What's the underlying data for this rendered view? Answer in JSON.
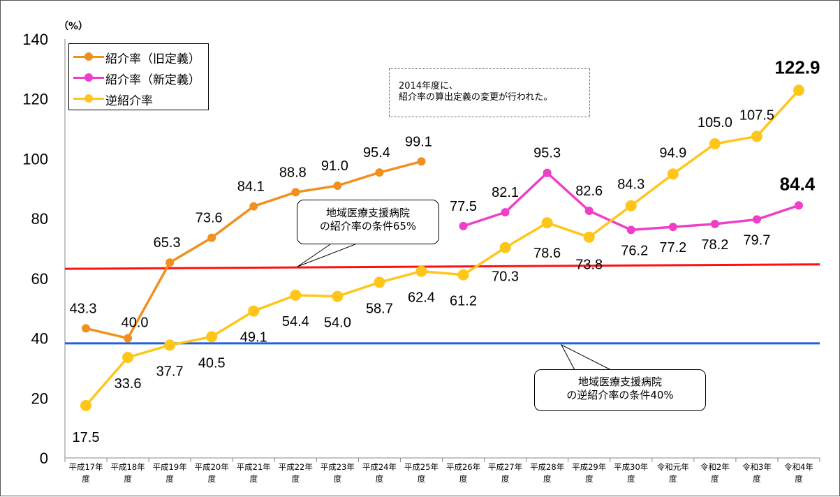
{
  "chart_data": {
    "type": "line",
    "unit_label": "（%）",
    "ylim": [
      0,
      140
    ],
    "yticks": [
      0,
      20,
      40,
      60,
      80,
      100,
      120,
      140
    ],
    "categories": [
      [
        "平成17年",
        "度"
      ],
      [
        "平成18年",
        "度"
      ],
      [
        "平成19年",
        "度"
      ],
      [
        "平成20年",
        "度"
      ],
      [
        "平成21年",
        "度"
      ],
      [
        "平成22年",
        "度"
      ],
      [
        "平成23年",
        "度"
      ],
      [
        "平成24年",
        "度"
      ],
      [
        "平成25年",
        "度"
      ],
      [
        "平成26年",
        "度"
      ],
      [
        "平成27年",
        "度"
      ],
      [
        "平成28年",
        "度"
      ],
      [
        "平成29年",
        "度"
      ],
      [
        "平成30年",
        "度"
      ],
      [
        "令和元年",
        "度"
      ],
      [
        "令和2年",
        "度"
      ],
      [
        "令和3年",
        "度"
      ],
      [
        "令和4年",
        "度"
      ]
    ],
    "series": [
      {
        "name": "紹介率（旧定義）",
        "color": "#f0901e",
        "values": [
          43.3,
          40.0,
          65.3,
          73.6,
          84.1,
          88.8,
          91.0,
          95.4,
          99.1,
          null,
          null,
          null,
          null,
          null,
          null,
          null,
          null,
          null
        ],
        "labels": [
          "43.3",
          "40.0",
          "65.3",
          "73.6",
          "84.1",
          "88.8",
          "91.0",
          "95.4",
          "99.1",
          null,
          null,
          null,
          null,
          null,
          null,
          null,
          null,
          null
        ]
      },
      {
        "name": "紹介率（新定義）",
        "color": "#ee3fc8",
        "values": [
          null,
          null,
          null,
          null,
          null,
          null,
          null,
          null,
          null,
          77.5,
          82.1,
          95.3,
          82.6,
          76.2,
          77.2,
          78.2,
          79.7,
          84.4
        ],
        "labels": [
          null,
          null,
          null,
          null,
          null,
          null,
          null,
          null,
          null,
          "77.5",
          "82.1",
          "95.3",
          "82.6",
          "76.2",
          "77.2",
          "78.2",
          "79.7",
          "84.4"
        ]
      },
      {
        "name": "逆紹介率",
        "color": "#ffc61a",
        "values": [
          17.5,
          33.6,
          37.7,
          40.5,
          49.1,
          54.4,
          54.0,
          58.7,
          62.4,
          61.2,
          70.3,
          78.6,
          73.8,
          84.3,
          94.9,
          105.0,
          107.5,
          122.9
        ],
        "labels": [
          "17.5",
          "33.6",
          "37.7",
          "40.5",
          "49.1",
          "54.4",
          "54.0",
          "58.7",
          "62.4",
          "61.2",
          "70.3",
          "78.6",
          "73.8",
          "84.3",
          "94.9",
          "105.0",
          "107.5",
          "122.9"
        ]
      }
    ],
    "reference_lines": [
      {
        "name": "紹介率の条件65%",
        "color": "#ff1010",
        "y_start": 63.2,
        "y_end": 64.7
      },
      {
        "name": "逆紹介率の条件40%",
        "color": "#2060e0",
        "y_start": 38.3,
        "y_end": 38.3
      }
    ],
    "legend_position": "top-left"
  },
  "note": {
    "line1": "2014年度に、",
    "line2": "紹介率の算出定義の変更が行われた。"
  },
  "callout_referral": {
    "line1": "地域医療支援病院",
    "line2": "の紹介率の条件65%"
  },
  "callout_reverse": {
    "line1": "地域医療支援病院",
    "line2": "の逆紹介率の条件40%"
  }
}
